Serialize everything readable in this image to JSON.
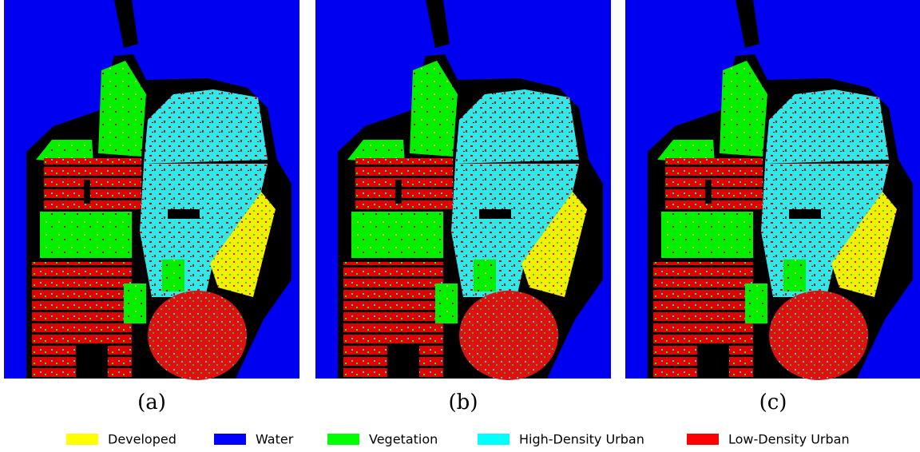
{
  "panels": [
    {
      "caption": "(a)"
    },
    {
      "caption": "(b)"
    },
    {
      "caption": "(c)"
    }
  ],
  "legend": [
    {
      "label": "Developed",
      "color": "#ffff00"
    },
    {
      "label": "Water",
      "color": "#0000ff"
    },
    {
      "label": "Vegetation",
      "color": "#00ff00"
    },
    {
      "label": "High-Density Urban",
      "color": "#00ffff"
    },
    {
      "label": "Low-Density Urban",
      "color": "#ff0000"
    }
  ]
}
